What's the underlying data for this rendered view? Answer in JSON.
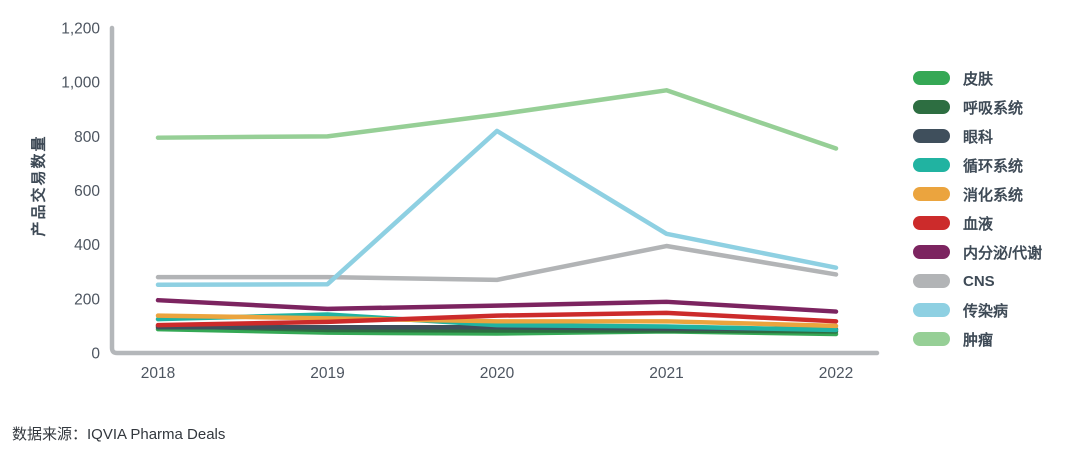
{
  "source_note": "数据来源：IQVIA Pharma Deals",
  "axis_color": "#b4b7ba",
  "chart_data": {
    "type": "line",
    "title": "",
    "xlabel": "",
    "ylabel": "产品交易数量",
    "categories": [
      "2018",
      "2019",
      "2020",
      "2021",
      "2022"
    ],
    "ylim": [
      0,
      1200
    ],
    "grid": false,
    "legend_position": "right",
    "yticks": [
      {
        "value": 0,
        "label": "0"
      },
      {
        "value": 200,
        "label": "200"
      },
      {
        "value": 400,
        "label": "400"
      },
      {
        "value": 600,
        "label": "600"
      },
      {
        "value": 800,
        "label": "800"
      },
      {
        "value": 1000,
        "label": "1,000"
      },
      {
        "value": 1200,
        "label": "1,200"
      }
    ],
    "series": [
      {
        "name": "皮肤",
        "color": "#35a855",
        "values": [
          88,
          75,
          72,
          80,
          70
        ]
      },
      {
        "name": "呼吸系统",
        "color": "#2d6e41",
        "values": [
          100,
          85,
          83,
          83,
          80
        ]
      },
      {
        "name": "眼科",
        "color": "#3f4f5c",
        "values": [
          95,
          95,
          95,
          90,
          88
        ]
      },
      {
        "name": "循环系统",
        "color": "#21b3a1",
        "values": [
          125,
          142,
          103,
          98,
          85
        ]
      },
      {
        "name": "消化系统",
        "color": "#eba43e",
        "values": [
          138,
          128,
          117,
          117,
          100
        ]
      },
      {
        "name": "血液",
        "color": "#cc2b2b",
        "values": [
          103,
          115,
          138,
          148,
          117
        ]
      },
      {
        "name": "内分泌/代谢",
        "color": "#7c2460",
        "values": [
          195,
          163,
          175,
          189,
          153
        ]
      },
      {
        "name": "CNS",
        "color": "#b2b4b6",
        "values": [
          280,
          280,
          270,
          395,
          290
        ]
      },
      {
        "name": "传染病",
        "color": "#8ed0e2",
        "values": [
          252,
          254,
          820,
          440,
          315
        ]
      },
      {
        "name": "肿瘤",
        "color": "#96cf96",
        "values": [
          795,
          800,
          880,
          970,
          755
        ]
      }
    ]
  }
}
